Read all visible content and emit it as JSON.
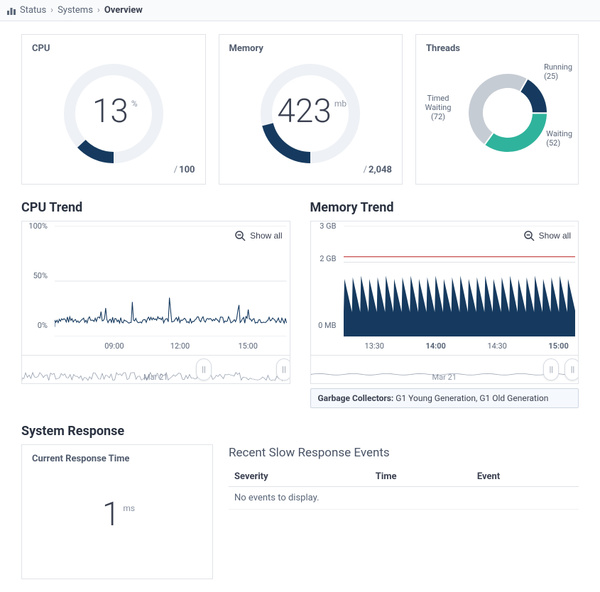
{
  "breadcrumb": {
    "items": [
      "Status",
      "Systems"
    ],
    "current": "Overview"
  },
  "cpu": {
    "title": "CPU",
    "value": "13",
    "unit": "%",
    "of_prefix": "/ ",
    "of_value": "100",
    "percent": 13,
    "ring_bg": "#eef1f5",
    "ring_fg": "#163a5f"
  },
  "memory": {
    "title": "Memory",
    "value": "423",
    "unit": "mb",
    "of_prefix": "/ ",
    "of_value": "2,048",
    "percent": 21,
    "ring_bg": "#eef1f5",
    "ring_fg": "#163a5f"
  },
  "threads": {
    "title": "Threads",
    "slices": [
      {
        "label": "Running",
        "count": "(25)",
        "color": "#163a5f"
      },
      {
        "label": "Waiting",
        "count": "(52)",
        "color": "#2fb39c"
      },
      {
        "label": "Timed Waiting",
        "count": "(72)",
        "color": "#c6ccd4"
      }
    ],
    "values": [
      25,
      52,
      72
    ],
    "inner_radius": 34,
    "outer_radius": 56
  },
  "cpu_trend": {
    "title": "CPU Trend",
    "zoom_label": "Show all",
    "y_ticks": [
      "0%",
      "50%",
      "100%"
    ],
    "x_ticks": [
      "09:00",
      "12:00",
      "15:00"
    ],
    "x_positions_pct": [
      25,
      55,
      86
    ],
    "line_color": "#163a5f",
    "grid_color": "#e0e3e8",
    "ylim": [
      0,
      100
    ],
    "brush_label": "Mar 21",
    "brush_handles_pct": [
      68,
      98
    ],
    "brush_line_color": "#9ba4b2"
  },
  "memory_trend": {
    "title": "Memory Trend",
    "zoom_label": "Show all",
    "y_ticks": [
      "0 MB",
      "2 GB",
      "3 GB"
    ],
    "y_positions_pct": [
      100,
      33,
      0
    ],
    "x_ticks": [
      "13:30",
      "14:00",
      "14:30",
      "15:00"
    ],
    "x_positions_pct": [
      12,
      40,
      68,
      96
    ],
    "x_bold": [
      false,
      true,
      false,
      true
    ],
    "area_color": "#163a5f",
    "band_color": "#2fb39c",
    "limit_line_color": "#c23a3a",
    "limit_at_pct": 28,
    "grid_color": "#e0e3e8",
    "brush_label": "Mar 21",
    "brush_handles_pct": [
      90,
      98
    ],
    "brush_line_color": "#9ba4b2",
    "gc_label": "Garbage Collectors:",
    "gc_value": " G1 Young Generation, G1 Old Generation"
  },
  "system_response": {
    "title": "System Response",
    "current_label": "Current Response Time",
    "value": "1",
    "unit": "ms"
  },
  "events": {
    "title": "Recent Slow Response Events",
    "columns": [
      "Severity",
      "Time",
      "Event"
    ],
    "empty_message": "No events to display."
  }
}
